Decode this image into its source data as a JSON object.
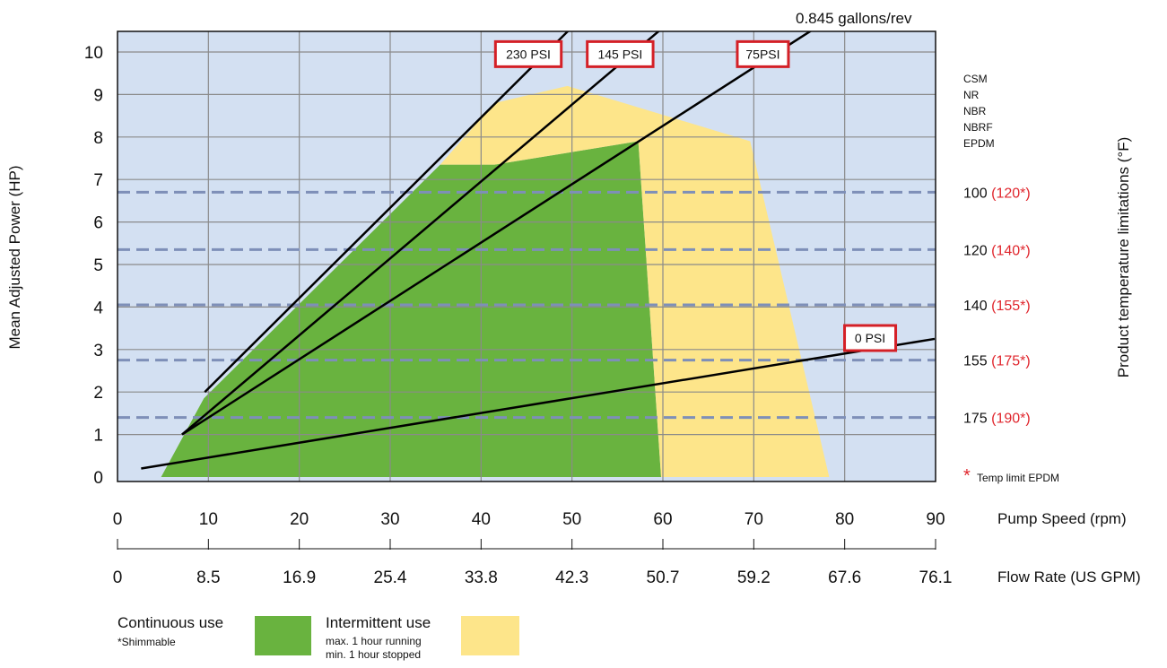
{
  "chart_data": {
    "type": "area",
    "xlabel": "Pump Speed (rpm)",
    "x2label": "Flow Rate (US GPM)",
    "ylabel": "Mean Adjusted Power (HP)",
    "y2label": "Product temperature limitations (°F)",
    "xlim": [
      0,
      90
    ],
    "ylim": [
      0,
      10.5
    ],
    "x_ticks": [
      0,
      10,
      20,
      30,
      40,
      50,
      60,
      70,
      80,
      90
    ],
    "x_tick_labels": [
      "0",
      "10",
      "20",
      "30",
      "40",
      "50",
      "60",
      "70",
      "80",
      "90"
    ],
    "flow_ticks": [
      "0",
      "8.5",
      "16.9",
      "25.4",
      "33.8",
      "42.3",
      "50.7",
      "59.2",
      "67.6",
      "76.1"
    ],
    "y_ticks": [
      0,
      1,
      2,
      3,
      4,
      5,
      6,
      7,
      8,
      9,
      10
    ],
    "y_tick_labels": [
      "0",
      "1",
      "2",
      "3",
      "4",
      "5",
      "6",
      "7",
      "8",
      "9",
      "10"
    ],
    "grid": true,
    "displacement_label": "0.845 gallons/rev",
    "regions": [
      {
        "name": "Continuous use",
        "color": "#69b33f",
        "points": [
          [
            4.8,
            0
          ],
          [
            9.5,
            1.85
          ],
          [
            35.5,
            7.35
          ],
          [
            41.5,
            7.35
          ],
          [
            57.3,
            7.9
          ],
          [
            59.8,
            0
          ]
        ]
      },
      {
        "name": "Intermittent use",
        "color": "#fde58a",
        "points": [
          [
            35.5,
            7.35
          ],
          [
            41.5,
            8.8
          ],
          [
            49.5,
            9.2
          ],
          [
            69.6,
            7.9
          ],
          [
            78.3,
            0
          ],
          [
            59.8,
            0
          ],
          [
            57.3,
            7.9
          ],
          [
            41.5,
            7.35
          ]
        ]
      }
    ],
    "series": [
      {
        "name": "230 PSI",
        "points": [
          [
            9.6,
            2.0
          ],
          [
            49.6,
            10.5
          ]
        ]
      },
      {
        "name": "145 PSI",
        "points": [
          [
            7.1,
            1.0
          ],
          [
            59.6,
            10.5
          ]
        ]
      },
      {
        "name": "75PSI",
        "points": [
          [
            7.1,
            1.0
          ],
          [
            76.3,
            10.5
          ]
        ]
      },
      {
        "name": "0 PSI",
        "points": [
          [
            2.6,
            0.2
          ],
          [
            89.9,
            3.25
          ]
        ]
      }
    ],
    "line_labels": [
      {
        "text": "230 PSI",
        "x": 45.2,
        "y": 9.95
      },
      {
        "text": "145 PSI",
        "x": 55.3,
        "y": 9.95
      },
      {
        "text": "75PSI",
        "x": 71.0,
        "y": 9.95
      },
      {
        "text": "0 PSI",
        "x": 82.8,
        "y": 3.27
      }
    ],
    "temperature_lines": [
      {
        "y": 6.7,
        "label": "100",
        "epdm": "(120*)"
      },
      {
        "y": 5.35,
        "label": "120",
        "epdm": "(140*)"
      },
      {
        "y": 4.05,
        "label": "140",
        "epdm": "(155*)"
      },
      {
        "y": 2.75,
        "label": "155",
        "epdm": "(175*)"
      },
      {
        "y": 1.4,
        "label": "175",
        "epdm": "(190*)"
      }
    ],
    "materials": [
      "CSM",
      "NR",
      "NBR",
      "NBRF",
      "EPDM"
    ],
    "temp_footnote_star": "*",
    "temp_footnote": "Temp limit EPDM",
    "legend": {
      "continuous": {
        "label": "Continuous use",
        "note": "*Shimmable",
        "color": "#69b33f"
      },
      "intermittent": {
        "label": "Intermittent use",
        "note1": "max. 1 hour running",
        "note2": "min. 1 hour stopped",
        "color": "#fde58a"
      }
    },
    "colors": {
      "plot_bg": "#d3e0f2",
      "grid": "#8a8a8a",
      "temp_line": "#7e8fb8",
      "label_box": "#d42027",
      "accent_red": "#e0262d"
    }
  }
}
